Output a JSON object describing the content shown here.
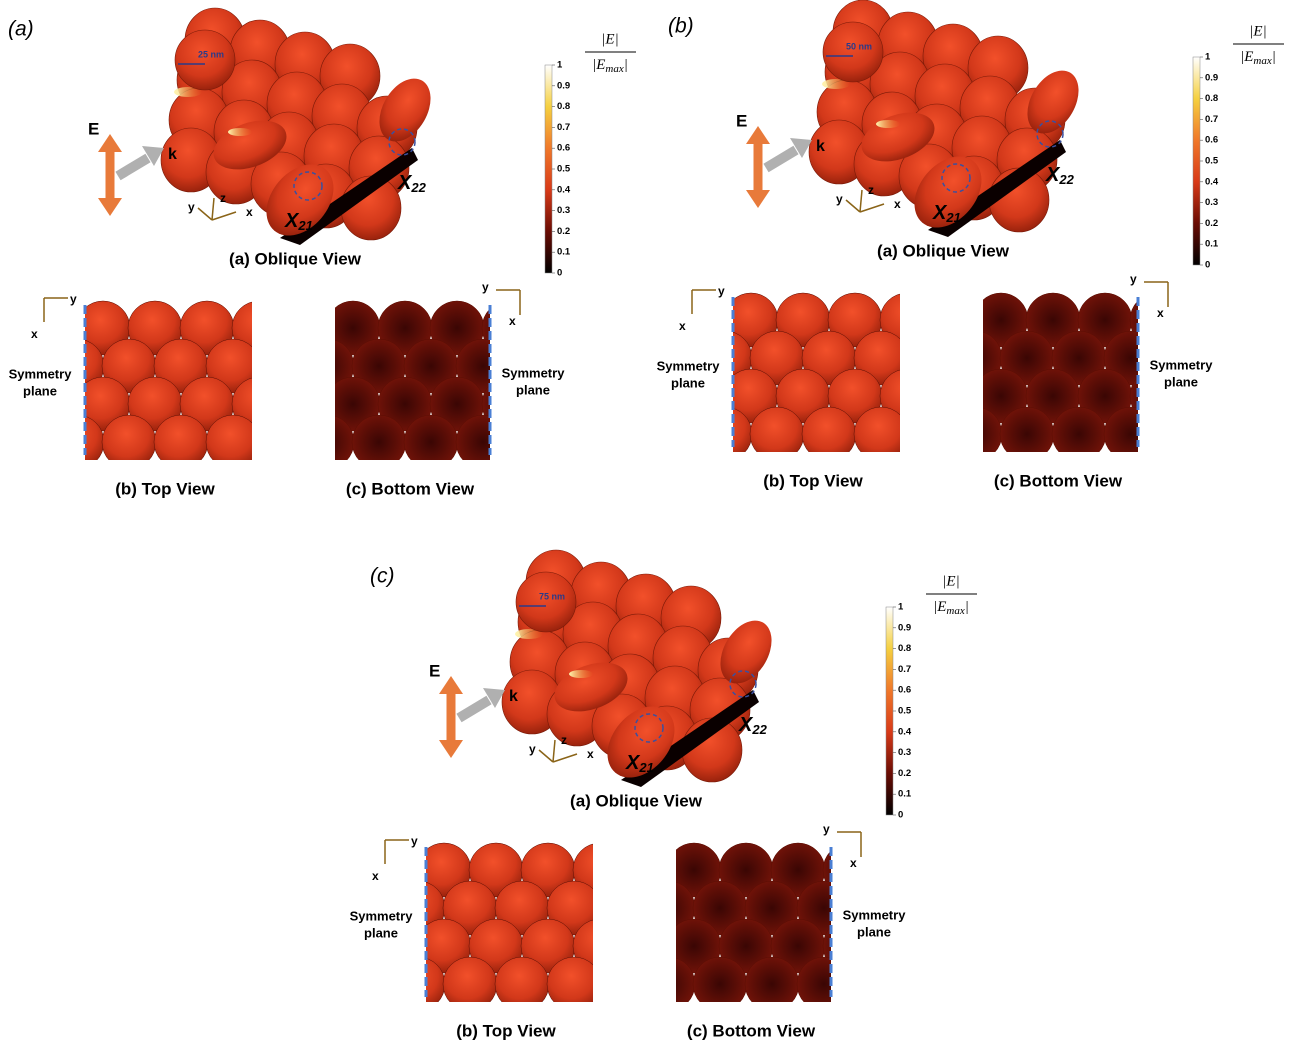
{
  "panels": [
    {
      "label": "(a)",
      "scale_label": "25 nm",
      "e_label": "E",
      "k_label": "k",
      "oblique_axes": [
        "y",
        "z",
        "x"
      ],
      "x21": {
        "base": "X",
        "sub": "21"
      },
      "x22": {
        "base": "X",
        "sub": "22"
      },
      "oblique_caption": "(a) Oblique View",
      "colorbar": {
        "numerator": "|E|",
        "denominator": {
          "base": "|E",
          "sub": "max",
          "end": "|"
        },
        "ticks": [
          0,
          0.1,
          0.2,
          0.3,
          0.4,
          0.5,
          0.6,
          0.7,
          0.8,
          0.9,
          1
        ]
      },
      "top_axes": [
        "x",
        "y"
      ],
      "top_plane": [
        "Symmetry",
        "plane"
      ],
      "top_caption": "(b) Top View",
      "bottom_axes": [
        "y",
        "x"
      ],
      "bottom_plane": [
        "Symmetry",
        "plane"
      ],
      "bottom_caption": "(c) Bottom View"
    },
    {
      "label": "(b)",
      "scale_label": "50 nm",
      "e_label": "E",
      "k_label": "k",
      "oblique_axes": [
        "y",
        "z",
        "x"
      ],
      "x21": {
        "base": "X",
        "sub": "21"
      },
      "x22": {
        "base": "X",
        "sub": "22"
      },
      "oblique_caption": "(a) Oblique View",
      "colorbar": {
        "numerator": "|E|",
        "denominator": {
          "base": "|E",
          "sub": "max",
          "end": "|"
        },
        "ticks": [
          0,
          0.1,
          0.2,
          0.3,
          0.4,
          0.5,
          0.6,
          0.7,
          0.8,
          0.9,
          1
        ]
      },
      "top_axes": [
        "x",
        "y"
      ],
      "top_plane": [
        "Symmetry",
        "plane"
      ],
      "top_caption": "(b) Top View",
      "bottom_axes": [
        "y",
        "x"
      ],
      "bottom_plane": [
        "Symmetry",
        "plane"
      ],
      "bottom_caption": "(c) Bottom View"
    },
    {
      "label": "(c)",
      "scale_label": "75 nm",
      "e_label": "E",
      "k_label": "k",
      "oblique_axes": [
        "y",
        "z",
        "x"
      ],
      "x21": {
        "base": "X",
        "sub": "21"
      },
      "x22": {
        "base": "X",
        "sub": "22"
      },
      "oblique_caption": "(a) Oblique View",
      "colorbar": {
        "numerator": "|E|",
        "denominator": {
          "base": "|E",
          "sub": "max",
          "end": "|"
        },
        "ticks": [
          0,
          0.1,
          0.2,
          0.3,
          0.4,
          0.5,
          0.6,
          0.7,
          0.8,
          0.9,
          1
        ]
      },
      "top_axes": [
        "x",
        "y"
      ],
      "top_plane": [
        "Symmetry",
        "plane"
      ],
      "top_caption": "(b) Top View",
      "bottom_axes": [
        "y",
        "x"
      ],
      "bottom_plane": [
        "Symmetry",
        "plane"
      ],
      "bottom_caption": "(c) Bottom View"
    }
  ]
}
